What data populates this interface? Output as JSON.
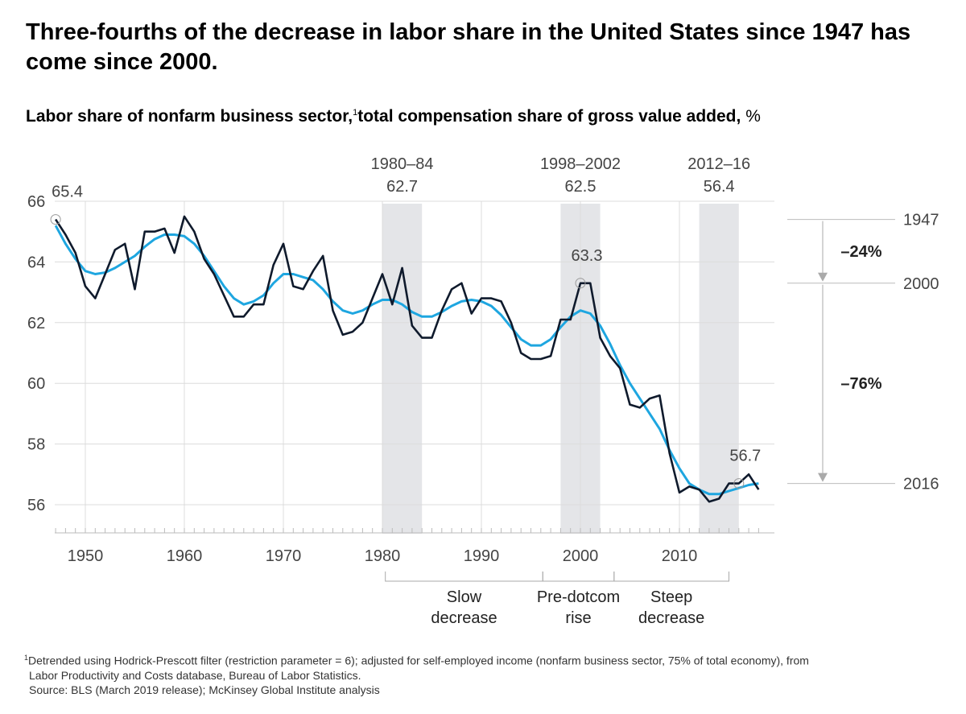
{
  "title": "Three-fourths of the decrease in labor share in the United States since 1947 has come since 2000.",
  "subtitle": {
    "text": "Labor share of nonfarm business sector,",
    "footnote_mark": "1",
    "text2": "total compensation share of gross value added,",
    "unit": "%"
  },
  "chart_data": {
    "type": "line",
    "ylim": [
      55,
      66
    ],
    "y_ticks": [
      56,
      58,
      60,
      62,
      64,
      66
    ],
    "x_ticks": [
      1950,
      1960,
      1970,
      1980,
      1990,
      2000,
      2010
    ],
    "x_range": [
      1947,
      2018
    ],
    "grid": true,
    "series": [
      {
        "color": "#0f1a2c",
        "x_start": 1947,
        "values": [
          65.4,
          64.9,
          64.3,
          63.2,
          62.8,
          63.6,
          64.4,
          64.6,
          63.1,
          65.0,
          65.0,
          65.1,
          64.3,
          65.5,
          65.0,
          64.1,
          63.6,
          62.9,
          62.2,
          62.2,
          62.6,
          62.6,
          63.9,
          64.6,
          63.2,
          63.1,
          63.7,
          64.2,
          62.4,
          61.6,
          61.7,
          62.0,
          62.8,
          63.6,
          62.6,
          63.8,
          61.9,
          61.5,
          61.5,
          62.4,
          63.1,
          63.3,
          62.3,
          62.8,
          62.8,
          62.7,
          62.0,
          61.0,
          60.8,
          60.8,
          60.9,
          62.1,
          62.1,
          63.3,
          63.3,
          61.5,
          60.9,
          60.5,
          59.3,
          59.2,
          59.5,
          59.6,
          57.7,
          56.4,
          56.6,
          56.5,
          56.1,
          56.2,
          56.7,
          56.7,
          57.0,
          56.5
        ]
      },
      {
        "color": "#1ea6e0",
        "x_start": 1947,
        "values": [
          65.2,
          64.6,
          64.1,
          63.7,
          63.6,
          63.65,
          63.8,
          64.0,
          64.2,
          64.5,
          64.75,
          64.9,
          64.9,
          64.85,
          64.6,
          64.2,
          63.7,
          63.2,
          62.8,
          62.6,
          62.7,
          62.9,
          63.3,
          63.6,
          63.6,
          63.5,
          63.4,
          63.1,
          62.7,
          62.4,
          62.3,
          62.4,
          62.6,
          62.75,
          62.75,
          62.6,
          62.35,
          62.2,
          62.2,
          62.35,
          62.55,
          62.7,
          62.75,
          62.7,
          62.55,
          62.25,
          61.85,
          61.45,
          61.25,
          61.25,
          61.45,
          61.85,
          62.2,
          62.4,
          62.3,
          61.9,
          61.3,
          60.6,
          60.0,
          59.5,
          59.0,
          58.5,
          57.8,
          57.2,
          56.7,
          56.5,
          56.35,
          56.35,
          56.45,
          56.55,
          56.65,
          56.7
        ]
      }
    ],
    "shaded_periods": [
      {
        "start": 1980,
        "end": 1984,
        "label": "1980–84",
        "value": "62.7"
      },
      {
        "start": 1998,
        "end": 2002,
        "label": "1998–2002",
        "value": "62.5"
      },
      {
        "start": 2012,
        "end": 2016,
        "label": "2012–16",
        "value": "56.4"
      }
    ],
    "point_labels": [
      {
        "year": 1947,
        "value": 65.4,
        "label": "65.4"
      },
      {
        "year": 2000,
        "value": 63.3,
        "label": "63.3"
      },
      {
        "year": 2016,
        "value": 56.7,
        "label": "56.7"
      }
    ],
    "reference_lines": [
      {
        "label": "1947",
        "value": 65.4
      },
      {
        "label": "2000",
        "value": 63.3
      },
      {
        "label": "2016",
        "value": 56.7
      }
    ],
    "changes": [
      {
        "from": "1947",
        "to": "2000",
        "label": "–24%"
      },
      {
        "from": "2000",
        "to": "2016",
        "label": "–76%"
      }
    ],
    "phases": [
      {
        "start": 1980.3,
        "end": 1996.2,
        "line1": "Slow",
        "line2": "decrease"
      },
      {
        "start": 1996.2,
        "end": 2003.4,
        "line1": "Pre-dotcom",
        "line2": "rise"
      },
      {
        "start": 2003.4,
        "end": 2015,
        "line1": "Steep",
        "line2": "decrease"
      }
    ]
  },
  "footnote": {
    "mark": "1",
    "line1": "Detrended using Hodrick-Prescott filter (restriction parameter = 6); adjusted for self-employed income (nonfarm business sector, 75% of total economy), from",
    "line2": "Labor Productivity and Costs database, Bureau of Labor Statistics.",
    "source": "Source: BLS (March 2019 release); McKinsey Global Institute analysis"
  }
}
